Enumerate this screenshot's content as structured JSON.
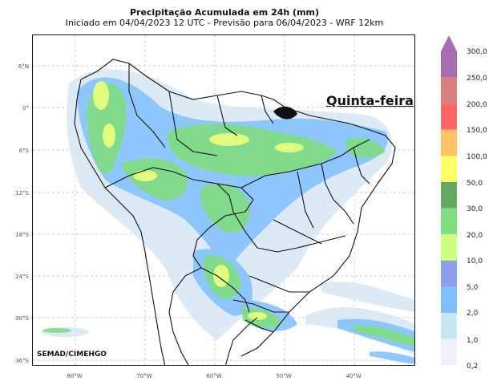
{
  "header": {
    "title": "Precipitação Acumulada em 24h (mm)",
    "subtitle": "Iniciado em 04/04/2023 12 UTC - Previsão para 06/04/2023 - WRF 12km"
  },
  "map": {
    "day_label": "Quinta-feira",
    "credit": "SEMAD/CIMEHGO",
    "lat_labels": [
      "6°N",
      "0°",
      "6°S",
      "12°S",
      "18°S",
      "24°S",
      "30°S",
      "36°S"
    ],
    "lon_labels": [
      "80°W",
      "70°W",
      "60°W",
      "50°W",
      "40°W"
    ],
    "ocean_color": "#ffffff",
    "border_color": "#111111"
  },
  "legend": {
    "labels": [
      "300,0",
      "250,0",
      "200,0",
      "150,0",
      "100,0",
      "50,0",
      "30,0",
      "20,0",
      "10,0",
      "5,0",
      "2,0",
      "1,0",
      "0,2"
    ],
    "colors": [
      "#a86cb4",
      "#d7807e",
      "#ff6666",
      "#ffc266",
      "#ffff66",
      "#63a863",
      "#80dd80",
      "#cdff80",
      "#8c9ee8",
      "#80bfff",
      "#c8e6ef",
      "#f0f0fa"
    ],
    "arrow_color": "#a86cb4"
  }
}
